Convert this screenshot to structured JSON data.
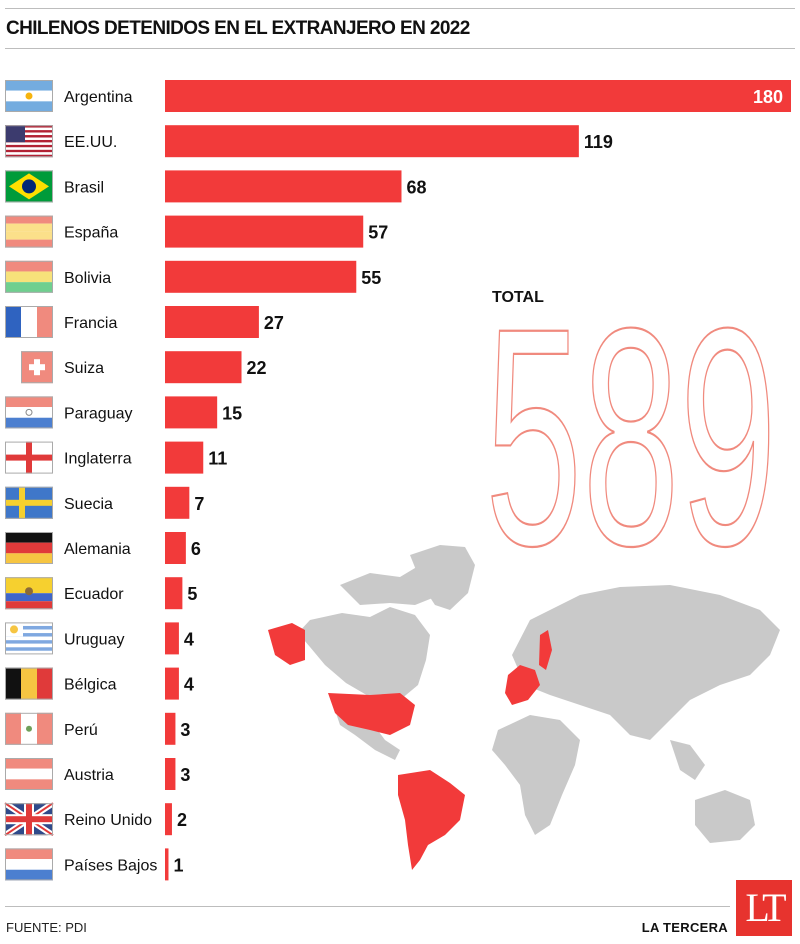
{
  "title": "CHILENOS DETENIDOS EN EL EXTRANJERO EN 2022",
  "total": {
    "label": "TOTAL",
    "value": "589"
  },
  "footer": {
    "source": "FUENTE: PDI",
    "brand": "LA TERCERA",
    "logo": "LT"
  },
  "colors": {
    "bar": "#f23a3a",
    "total": "#f08a7e",
    "map_land": "#c9c9c9",
    "map_highlight": "#f23a3a"
  },
  "chart_data": {
    "type": "bar",
    "orientation": "horizontal",
    "xlim": [
      0,
      180
    ],
    "grid": false,
    "categories": [
      "Argentina",
      "EE.UU.",
      "Brasil",
      "España",
      "Bolivia",
      "Francia",
      "Suiza",
      "Paraguay",
      "Inglaterra",
      "Suecia",
      "Alemania",
      "Ecuador",
      "Uruguay",
      "Bélgica",
      "Perú",
      "Austria",
      "Reino Unido",
      "Países Bajos"
    ],
    "values": [
      180,
      119,
      68,
      57,
      55,
      27,
      22,
      15,
      11,
      7,
      6,
      5,
      4,
      4,
      3,
      3,
      2,
      1
    ],
    "data_labels": [
      "180",
      "119",
      "68",
      "57",
      "55",
      "27",
      "22",
      "15",
      "11",
      "7",
      "6",
      "5",
      "4",
      "4",
      "3",
      "3",
      "2",
      "1"
    ],
    "flags": [
      "flag-argentina-icon",
      "flag-usa-icon",
      "flag-brazil-icon",
      "flag-spain-icon",
      "flag-bolivia-icon",
      "flag-france-icon",
      "flag-switzerland-icon",
      "flag-paraguay-icon",
      "flag-england-icon",
      "flag-sweden-icon",
      "flag-germany-icon",
      "flag-ecuador-icon",
      "flag-uruguay-icon",
      "flag-belgium-icon",
      "flag-peru-icon",
      "flag-austria-icon",
      "flag-uk-icon",
      "flag-netherlands-icon"
    ]
  }
}
